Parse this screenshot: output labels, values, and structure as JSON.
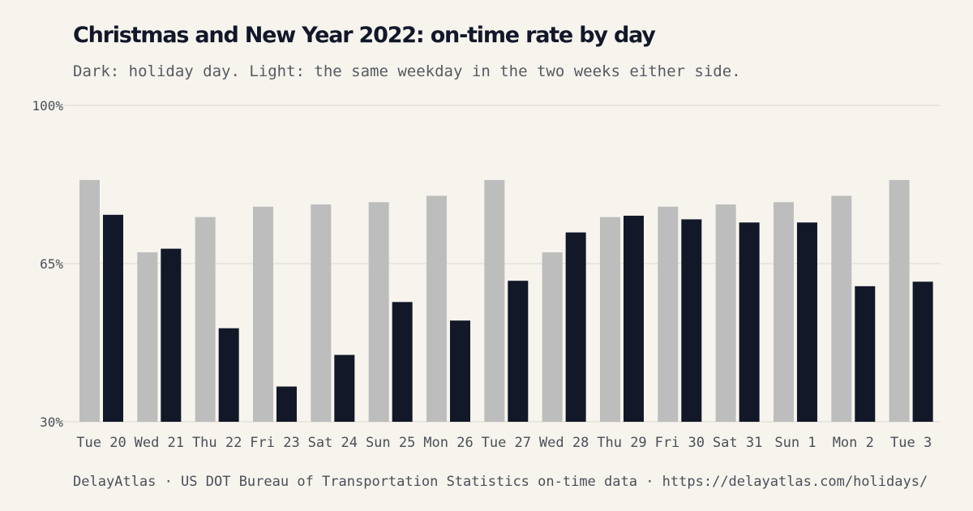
{
  "title": "Christmas and New Year 2022: on-time rate by day",
  "subtitle": "Dark: holiday day. Light: the same weekday in the two weeks either side.",
  "footer": "DelayAtlas · US DOT Bureau of Transportation Statistics on-time data · https://delayatlas.com/holidays/",
  "colors": {
    "holiday": "#121828",
    "baseline": "#bdbdbd",
    "grid": "#e4e1da",
    "axis_text": "#4a4f58",
    "background": "#f7f4ee"
  },
  "chart_data": {
    "type": "bar",
    "title": "Christmas and New Year 2022: on-time rate by day",
    "subtitle": "Dark: holiday day. Light: the same weekday in the two weeks either side.",
    "xlabel": "",
    "ylabel": "",
    "ylim": [
      30,
      100
    ],
    "y_ticks": [
      {
        "value": 30,
        "label": "30%"
      },
      {
        "value": 65,
        "label": "65%"
      },
      {
        "value": 100,
        "label": "100%"
      }
    ],
    "grid": true,
    "categories": [
      "Tue 20",
      "Wed 21",
      "Thu 22",
      "Fri 23",
      "Sat 24",
      "Sun 25",
      "Mon 26",
      "Tue 27",
      "Wed 28",
      "Thu 29",
      "Fri 30",
      "Sat 31",
      "Sun 1",
      "Mon 2",
      "Tue 3"
    ],
    "series": [
      {
        "role": "baseline",
        "values": [
          83.5,
          67.5,
          75.3,
          77.6,
          78.1,
          78.6,
          80.0,
          83.5,
          67.5,
          75.3,
          77.6,
          78.1,
          78.6,
          80.0,
          83.5
        ]
      },
      {
        "role": "holiday",
        "values": [
          75.8,
          68.3,
          50.7,
          37.8,
          44.8,
          56.5,
          52.4,
          61.2,
          71.9,
          75.6,
          74.8,
          74.1,
          74.1,
          60.0,
          61.0
        ]
      }
    ]
  }
}
